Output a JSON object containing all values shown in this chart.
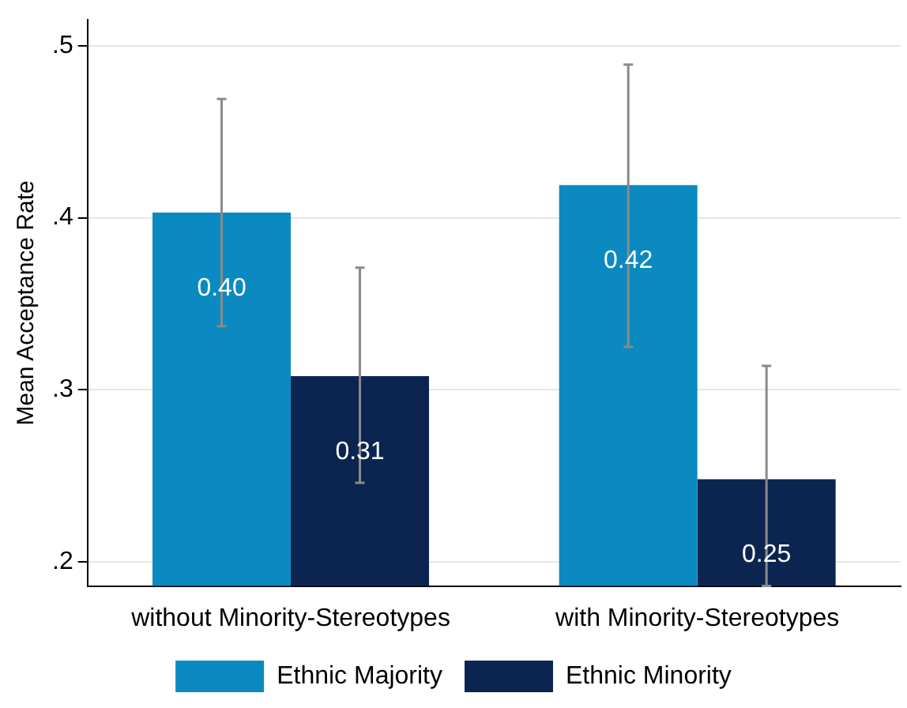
{
  "chart_data": {
    "type": "bar",
    "ylabel": "Mean Acceptance Rate",
    "categories": [
      "without Minority-Stereotypes",
      "with Minority-Stereotypes"
    ],
    "series": [
      {
        "name": "Ethnic Majority",
        "color": "#0a8ac0",
        "values": [
          0.403,
          0.419
        ],
        "errors": [
          [
            0.337,
            0.469
          ],
          [
            0.325,
            0.489
          ]
        ],
        "value_labels": [
          "0.40",
          "0.42"
        ]
      },
      {
        "name": "Ethnic Minority",
        "color": "#0c2550",
        "values": [
          0.308,
          0.248
        ],
        "errors": [
          [
            0.246,
            0.371
          ],
          [
            0.186,
            0.314
          ]
        ],
        "value_labels": [
          "0.31",
          "0.25"
        ]
      }
    ],
    "ylim": [
      0.186,
      0.515
    ],
    "yticks": [
      {
        "value": 0.2,
        "label": ".2"
      },
      {
        "value": 0.3,
        "label": ".3"
      },
      {
        "value": 0.4,
        "label": ".4"
      },
      {
        "value": 0.5,
        "label": ".5"
      }
    ],
    "grid": "y",
    "legend": "bottom"
  }
}
